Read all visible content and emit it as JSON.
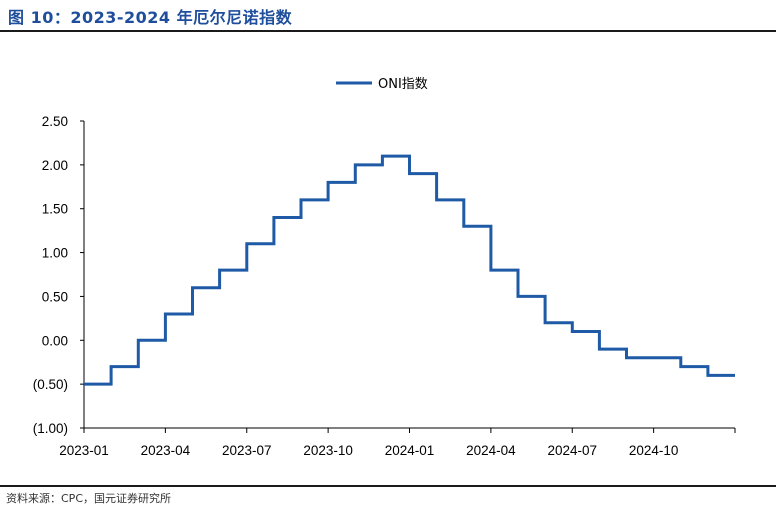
{
  "header": {
    "title": "图 10：2023-2024 年厄尔尼诺指数"
  },
  "footer": {
    "source": "资料来源：CPC，国元证券研究所"
  },
  "chart_data": {
    "type": "line",
    "step": true,
    "title": "",
    "xlabel": "",
    "ylabel": "",
    "ylim": [
      -1.0,
      2.5
    ],
    "yticks": [
      2.5,
      2.0,
      1.5,
      1.0,
      0.5,
      0.0,
      -0.5,
      -1.0
    ],
    "ytick_labels": [
      "2.50",
      "2.00",
      "1.50",
      "1.00",
      "0.50",
      "0.00",
      "(0.50)",
      "(1.00)"
    ],
    "negative_tick_color": "#e00000",
    "xticks": [
      "2023-01",
      "2023-04",
      "2023-07",
      "2023-10",
      "2024-01",
      "2024-04",
      "2024-07",
      "2024-10"
    ],
    "legend": {
      "position": "top-center"
    },
    "grid": false,
    "series_color": "#1f5aa6",
    "x": [
      "2023-01",
      "2023-02",
      "2023-03",
      "2023-04",
      "2023-05",
      "2023-06",
      "2023-07",
      "2023-08",
      "2023-09",
      "2023-10",
      "2023-11",
      "2023-12",
      "2024-01",
      "2024-02",
      "2024-03",
      "2024-04",
      "2024-05",
      "2024-06",
      "2024-07",
      "2024-08",
      "2024-09",
      "2024-10",
      "2024-11",
      "2024-12"
    ],
    "series": [
      {
        "name": "ONI指数",
        "values": [
          -0.5,
          -0.3,
          0.0,
          0.3,
          0.6,
          0.8,
          1.1,
          1.4,
          1.6,
          1.8,
          2.0,
          2.1,
          1.9,
          1.6,
          1.3,
          0.8,
          0.5,
          0.2,
          0.1,
          -0.1,
          -0.2,
          -0.2,
          -0.3,
          -0.4
        ]
      }
    ]
  }
}
